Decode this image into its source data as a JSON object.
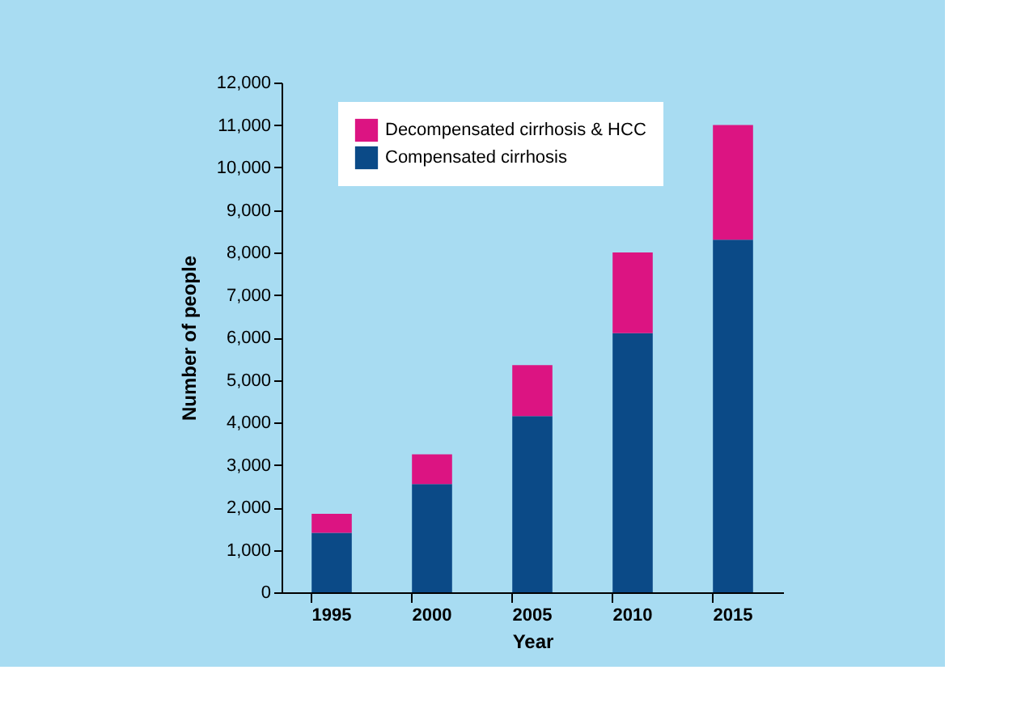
{
  "chart_data": {
    "type": "bar",
    "stacked": true,
    "xlabel": "Year",
    "ylabel": "Number of people",
    "categories": [
      "1995",
      "2000",
      "2005",
      "2010",
      "2015"
    ],
    "series": [
      {
        "name": "Compensated cirrhosis",
        "color": "#0b4a87",
        "values": [
          1400,
          2550,
          4150,
          6100,
          8300
        ]
      },
      {
        "name": "Decompensated cirrhosis & HCC",
        "color": "#dc1482",
        "values": [
          450,
          700,
          1200,
          1900,
          2700
        ]
      }
    ],
    "ylim": [
      0,
      12000
    ],
    "yticks": [
      0,
      {
        "value": 1000,
        "label": "1,000"
      },
      {
        "value": 2000,
        "label": "2,000"
      },
      {
        "value": 3000,
        "label": "3,000"
      },
      {
        "value": 4000,
        "label": "4,000"
      },
      {
        "value": 5000,
        "label": "5,000"
      },
      {
        "value": 6000,
        "label": "6,000"
      },
      {
        "value": 7000,
        "label": "7,000"
      },
      {
        "value": 8000,
        "label": "8,000"
      },
      {
        "value": 9000,
        "label": "9,000"
      },
      {
        "value": 10000,
        "label": "10,000"
      },
      {
        "value": 11000,
        "label": "11,000"
      },
      {
        "value": 12000,
        "label": "12,000"
      }
    ],
    "grid": false,
    "legend": "top left"
  }
}
